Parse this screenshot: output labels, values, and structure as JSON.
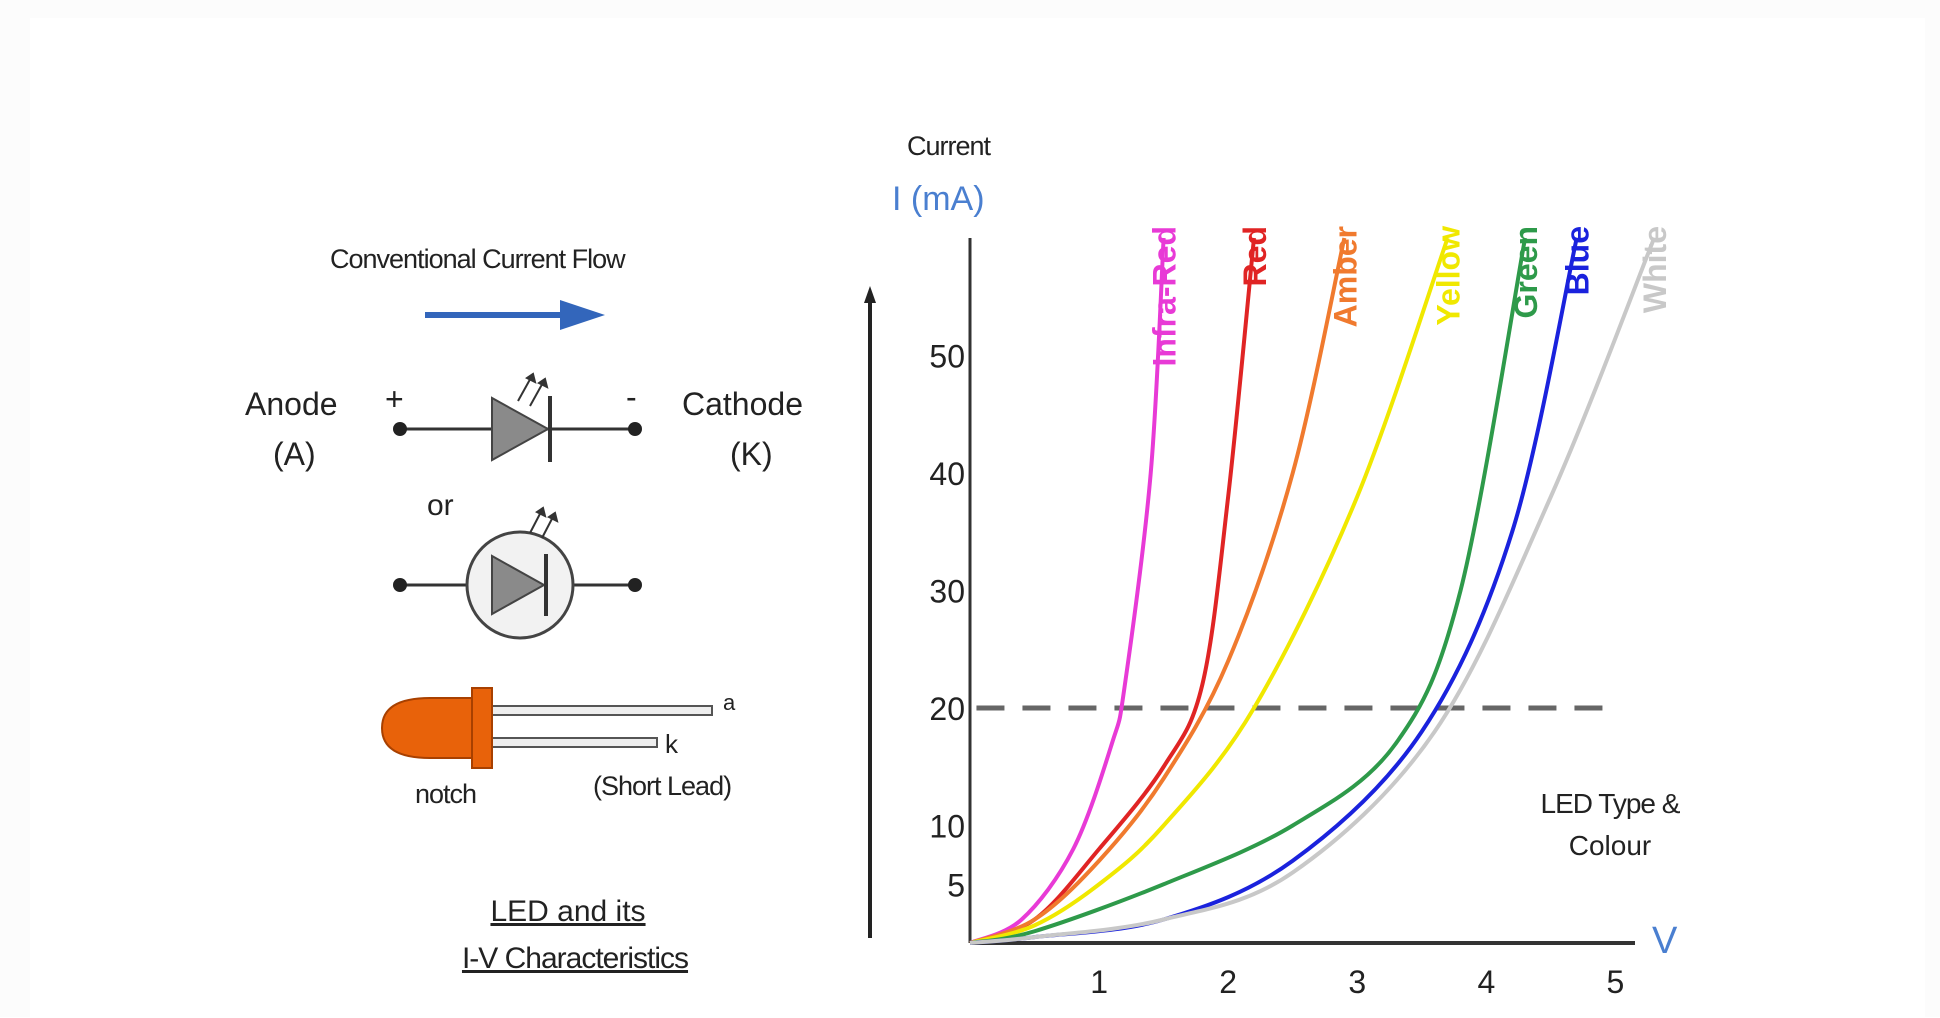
{
  "left_panel": {
    "flow_label": "Conventional Current Flow",
    "anode_label": "Anode",
    "anode_symbol": "(A)",
    "plus_sign": "+",
    "cathode_label": "Cathode",
    "cathode_symbol": "(K)",
    "minus_sign": "-",
    "or_text": "or",
    "long_lead_label": "a",
    "short_lead_label": "k",
    "notch_label": "notch",
    "short_lead_text": "(Short Lead)",
    "caption_line1": "LED and its",
    "caption_line2": "I-V Characteristics",
    "colors": {
      "arrow": "#3366bb",
      "led_body": "#e8620a",
      "symbol_fill": "#8a8a8a"
    }
  },
  "chart_data": {
    "type": "line",
    "title": "",
    "ylabel_line1": "Current",
    "ylabel_line2": "I (mA)",
    "xlabel": "V",
    "xlim": [
      0,
      5.5
    ],
    "ylim": [
      0,
      60
    ],
    "x_ticks": [
      "1",
      "2",
      "3",
      "4",
      "5"
    ],
    "y_ticks": [
      "5",
      "10",
      "20",
      "30",
      "40",
      "50"
    ],
    "reference_line": {
      "y": 20,
      "style": "dashed"
    },
    "legend_title_line1": "LED Type &",
    "legend_title_line2": "Colour",
    "grid": false,
    "series": [
      {
        "name": "Infra-Red",
        "color": "#e83ad6",
        "x": [
          0,
          0.4,
          0.8,
          1.1,
          1.2,
          1.4,
          1.5
        ],
        "y": [
          0,
          2,
          8,
          17,
          22,
          40,
          60
        ]
      },
      {
        "name": "Red",
        "color": "#e02424",
        "x": [
          0,
          0.5,
          1.0,
          1.5,
          1.8,
          2.0,
          2.2
        ],
        "y": [
          0,
          2,
          8,
          15,
          22,
          38,
          60
        ]
      },
      {
        "name": "Amber",
        "color": "#f07a2e",
        "x": [
          0,
          0.5,
          1.0,
          1.5,
          2.0,
          2.5,
          2.9
        ],
        "y": [
          0,
          2,
          7,
          14,
          24,
          40,
          60
        ]
      },
      {
        "name": "Yellow",
        "color": "#f0e800",
        "x": [
          0,
          0.5,
          1.0,
          1.5,
          2.2,
          3.0,
          3.7
        ],
        "y": [
          0,
          1.5,
          5,
          10,
          20,
          38,
          60
        ]
      },
      {
        "name": "Green",
        "color": "#2e9a4a",
        "x": [
          0,
          0.5,
          1.5,
          2.5,
          3.3,
          3.8,
          4.3
        ],
        "y": [
          0,
          1,
          5,
          10,
          17,
          30,
          60
        ]
      },
      {
        "name": "Blue",
        "color": "#1a22dd",
        "x": [
          0,
          0.5,
          1.5,
          2.5,
          3.5,
          4.2,
          4.7
        ],
        "y": [
          0,
          0.5,
          2,
          7,
          18,
          35,
          60
        ]
      },
      {
        "name": "White",
        "color": "#c8c8c8",
        "x": [
          0,
          0.5,
          1.5,
          2.5,
          3.6,
          4.5,
          5.3
        ],
        "y": [
          0,
          0.5,
          2,
          6,
          18,
          38,
          60
        ]
      }
    ]
  }
}
